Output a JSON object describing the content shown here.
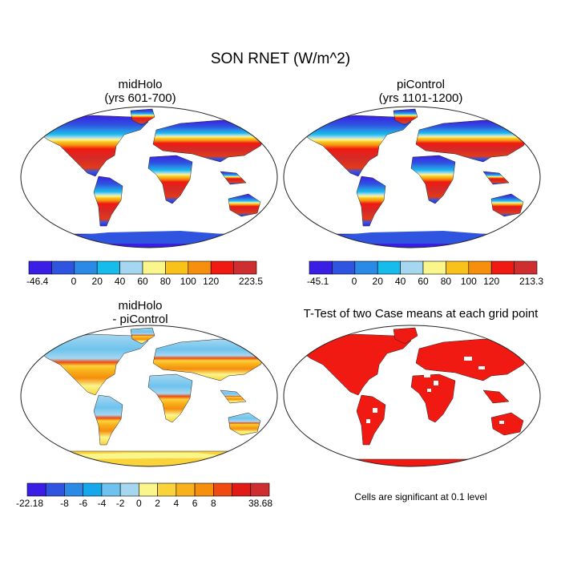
{
  "title": "SON RNET (W/m^2)",
  "panels": [
    {
      "id": "midholo",
      "title_line1": "midHolo",
      "title_line2": "(yrs 601-700)"
    },
    {
      "id": "picontrol",
      "title_line1": "piControl",
      "title_line2": "(yrs 1101-1200)"
    },
    {
      "id": "diff",
      "title_line1": "midHolo",
      "title_line2": "- piControl"
    },
    {
      "id": "ttest",
      "title_line1": "T-Test of two Case means at each grid point",
      "title_line2": ""
    }
  ],
  "colorbars": {
    "absolute": {
      "colors": [
        "#3a1ee6",
        "#2f55e0",
        "#2a8ae6",
        "#16bdea",
        "#a6d7f0",
        "#fbf68c",
        "#f8c21a",
        "#f68e0e",
        "#f01a12",
        "#cf2e30"
      ],
      "labels": [
        "20",
        "40",
        "60",
        "80",
        "100",
        "120"
      ]
    },
    "diff": {
      "colors": [
        "#3a1ee6",
        "#2f55e0",
        "#2a8ae6",
        "#16a8ea",
        "#6ec3ee",
        "#a6d7f0",
        "#fbf68c",
        "#fad33a",
        "#f8b11a",
        "#f68e0e",
        "#f04a12",
        "#e01a16",
        "#cf2e30"
      ],
      "labels": [
        "-8",
        "-6",
        "-4",
        "-2",
        "0",
        "2",
        "4",
        "6",
        "8"
      ]
    },
    "midholo": {
      "min": "-46.4",
      "zero": "0",
      "max": "223.5"
    },
    "picontrol": {
      "min": "-45.1",
      "zero": "0",
      "max": "213.3"
    },
    "diff_range": {
      "min": "-22.18",
      "max": "38.68"
    }
  },
  "note": "Cells are significant at 0.1 level"
}
